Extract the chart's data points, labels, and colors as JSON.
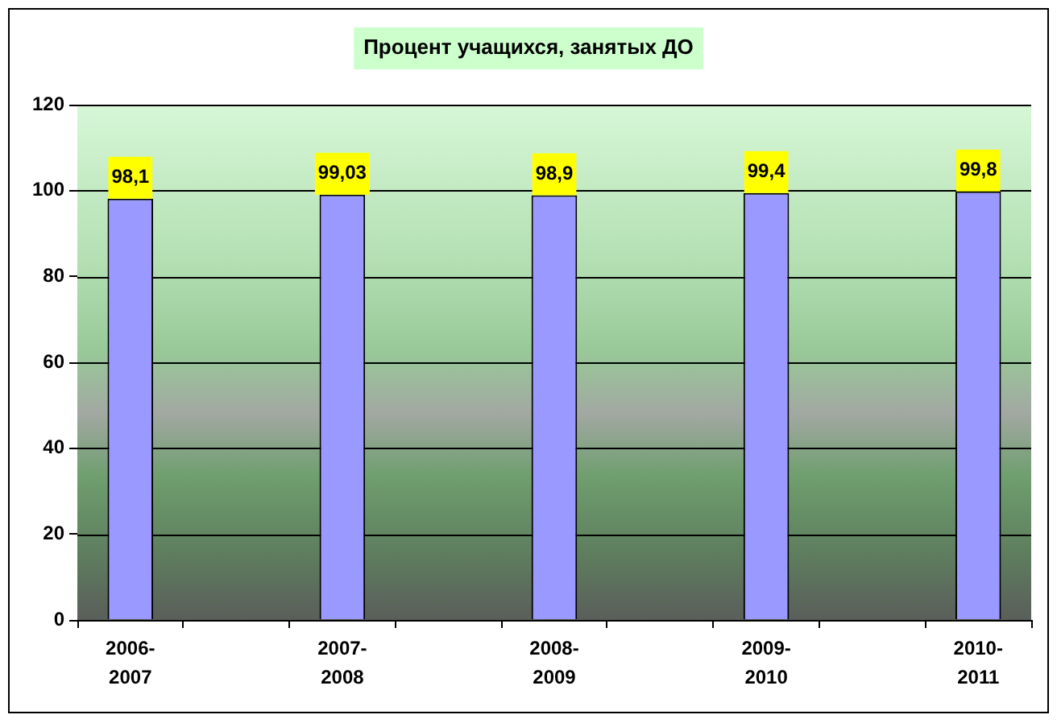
{
  "chart_data": {
    "type": "bar",
    "title": "Процент учащихся, занятых ДО",
    "categories": [
      "2006-2007",
      null,
      "2007-2008",
      null,
      "2008-2009",
      null,
      "2009-2010",
      null,
      "2010-2011"
    ],
    "values": [
      98.1,
      null,
      99.03,
      null,
      98.9,
      null,
      99.4,
      null,
      99.8
    ],
    "value_labels": [
      "98,1",
      null,
      "99,03",
      null,
      "98,9",
      null,
      "99,4",
      null,
      "99,8"
    ],
    "color": "#9999ff",
    "ylim": [
      0,
      120
    ],
    "yticks": [
      0,
      20,
      40,
      60,
      80,
      100,
      120
    ],
    "grid": "y"
  }
}
